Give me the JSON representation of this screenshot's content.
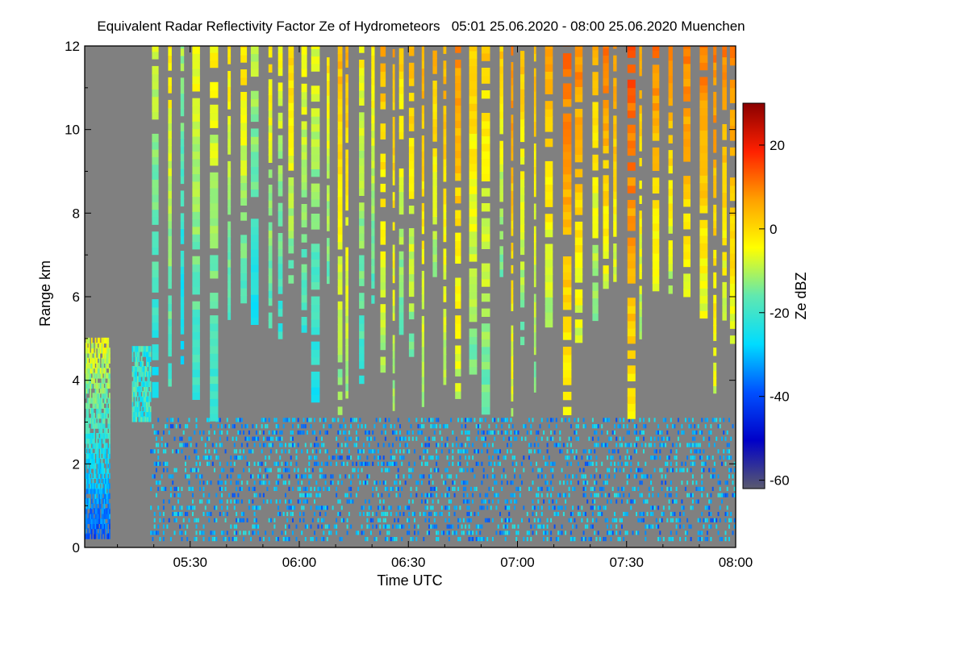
{
  "chart_data": {
    "type": "heatmap",
    "title": "Equivalent Radar Reflectivity Factor Ze of Hydrometeors   05:01 25.06.2020 - 08:00 25.06.2020 Muenchen",
    "xlabel": "Time UTC",
    "ylabel": "Range km",
    "x_ticks": [
      "05:30",
      "06:00",
      "06:30",
      "07:00",
      "07:30",
      "08:00"
    ],
    "x_tick_minutes": [
      330,
      360,
      390,
      420,
      450,
      480
    ],
    "xlim_minutes": [
      301,
      480
    ],
    "y_ticks": [
      "0",
      "2",
      "4",
      "6",
      "8",
      "10",
      "12"
    ],
    "ylim": [
      0,
      12
    ],
    "colorbar": {
      "label": "Ze dBZ",
      "ticks": [
        "20",
        "0",
        "-20",
        "-40",
        "-60"
      ],
      "tick_values": [
        20,
        0,
        -20,
        -40,
        -60
      ],
      "range": [
        -62,
        30
      ],
      "colormap": [
        "#5a5a6e",
        "#0000c8",
        "#0050ff",
        "#00dcff",
        "#60e8b0",
        "#ffff00",
        "#ffa000",
        "#ff2000",
        "#8a0000"
      ]
    },
    "background_color": "#808080",
    "structures": [
      {
        "name": "low-level cloud",
        "time_start_minutes": 301,
        "time_end_minutes": 308,
        "range_km": [
          0,
          5
        ],
        "ze_dbz": [
          -50,
          -5
        ]
      },
      {
        "name": "low-level cloud",
        "time_start_minutes": 314,
        "time_end_minutes": 319,
        "range_km": [
          3,
          4.8
        ],
        "ze_dbz": [
          -30,
          -10
        ]
      },
      {
        "name": "precipitation streaks",
        "time_start_minutes": 319,
        "time_end_minutes": 480,
        "range_km": [
          3,
          12
        ],
        "ze_dbz": [
          -35,
          20
        ]
      },
      {
        "name": "near-surface clutter",
        "time_start_minutes": 319,
        "time_end_minutes": 480,
        "range_km": [
          0,
          3
        ],
        "ze_dbz": [
          -45,
          -15
        ]
      }
    ]
  }
}
